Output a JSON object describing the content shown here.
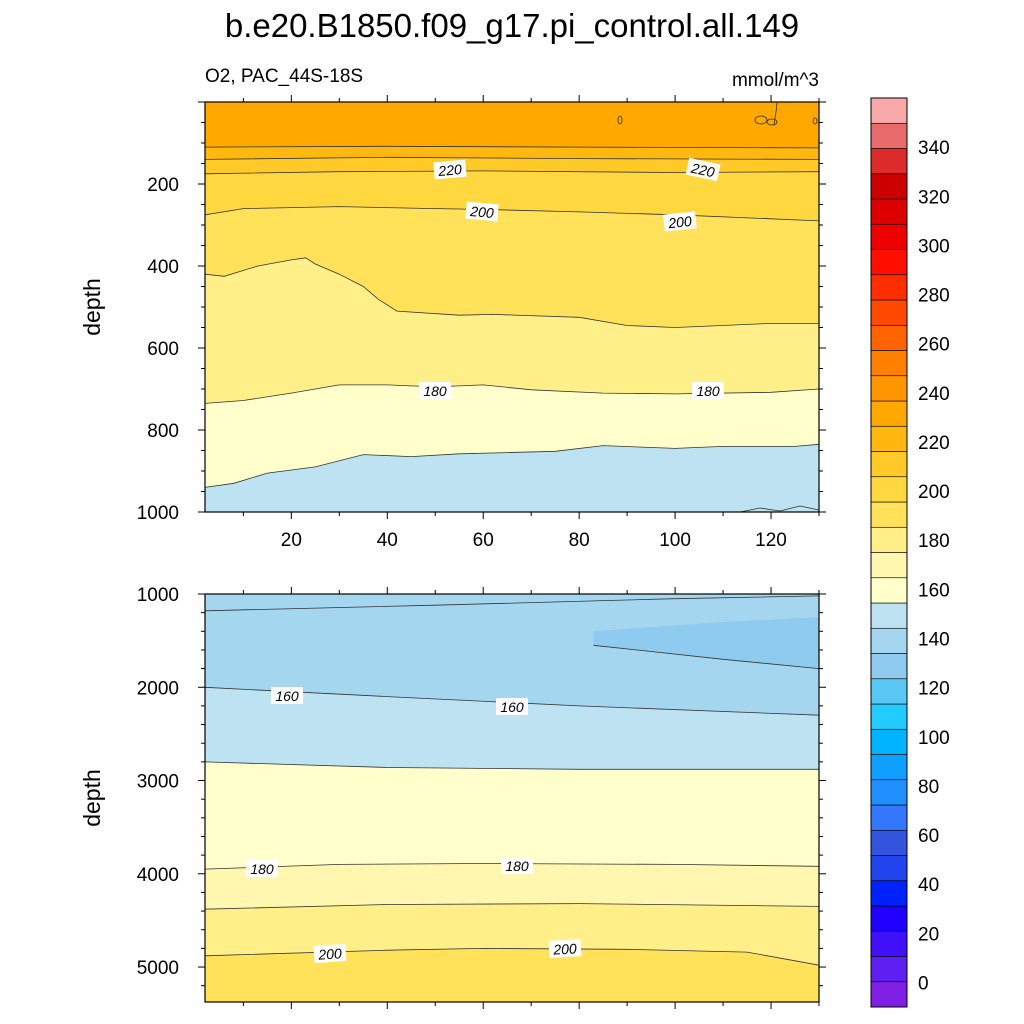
{
  "chart_data": {
    "type": "heatmap",
    "title": "b.e20.B1850.f09_g17.pi_control.all.149",
    "left_subtitle": "O2, PAC_44S-18S",
    "right_subtitle": "mmol/m^3",
    "colorbar": {
      "labels": [
        "340",
        "320",
        "300",
        "280",
        "260",
        "240",
        "220",
        "200",
        "180",
        "160",
        "140",
        "120",
        "100",
        "80",
        "60",
        "40",
        "20",
        "0"
      ],
      "level_min": -10,
      "level_max": 360,
      "level_step": 10,
      "colors": [
        "#7f1fe6",
        "#5f1ff3",
        "#3f10f9",
        "#1f00ff",
        "#0022ff",
        "#2244ee",
        "#3355dd",
        "#3377ff",
        "#1f8fff",
        "#0fa0ff",
        "#00b4ff",
        "#22ccff",
        "#5ac8f5",
        "#8ecbee",
        "#a4d6f0",
        "#bde2f2",
        "#ffffcc",
        "#fff7b0",
        "#ffef88",
        "#ffe25a",
        "#ffd840",
        "#ffc928",
        "#ffb810",
        "#ffa800",
        "#ff9600",
        "#ff7f00",
        "#ff6400",
        "#ff4a00",
        "#ff2e00",
        "#ff0f00",
        "#ee0000",
        "#dd0000",
        "#cc0000",
        "#dd2a2a",
        "#e86a6a",
        "#f8aaaa"
      ]
    },
    "panels": [
      {
        "ylabel": "depth",
        "xticks": [
          "20",
          "40",
          "60",
          "80",
          "100",
          "120"
        ],
        "xlim": [
          2,
          130
        ],
        "yticks": [
          "200",
          "400",
          "600",
          "800",
          "1000"
        ],
        "ylim": [
          1000,
          0
        ],
        "contour_labels": [
          "220",
          "220",
          "200",
          "200",
          "180",
          "180"
        ],
        "regions": [
          {
            "color": "#ffa800",
            "upper": null,
            "lower": [
              [
                2,
                110
              ],
              [
                40,
                108
              ],
              [
                80,
                110
              ],
              [
                130,
                112
              ]
            ]
          },
          {
            "color": "#ffb810",
            "upper": [
              [
                2,
                110
              ],
              [
                40,
                108
              ],
              [
                80,
                110
              ],
              [
                130,
                112
              ]
            ],
            "lower": [
              [
                2,
                140
              ],
              [
                40,
                135
              ],
              [
                80,
                138
              ],
              [
                130,
                140
              ]
            ]
          },
          {
            "color": "#ffc928",
            "upper": [
              [
                2,
                140
              ],
              [
                40,
                135
              ],
              [
                80,
                138
              ],
              [
                130,
                140
              ]
            ],
            "lower": [
              [
                2,
                175
              ],
              [
                30,
                170
              ],
              [
                60,
                168
              ],
              [
                100,
                172
              ],
              [
                130,
                170
              ]
            ]
          },
          {
            "color": "#ffd840",
            "upper": [
              [
                2,
                175
              ],
              [
                30,
                170
              ],
              [
                60,
                168
              ],
              [
                100,
                172
              ],
              [
                130,
                170
              ]
            ],
            "lower": [
              [
                2,
                275
              ],
              [
                10,
                260
              ],
              [
                30,
                255
              ],
              [
                50,
                260
              ],
              [
                60,
                262
              ],
              [
                80,
                268
              ],
              [
                100,
                275
              ],
              [
                120,
                285
              ],
              [
                130,
                290
              ]
            ]
          },
          {
            "color": "#ffe25a",
            "upper": [
              [
                2,
                275
              ],
              [
                10,
                260
              ],
              [
                30,
                255
              ],
              [
                50,
                260
              ],
              [
                60,
                262
              ],
              [
                80,
                268
              ],
              [
                100,
                275
              ],
              [
                120,
                285
              ],
              [
                130,
                290
              ]
            ],
            "lower": [
              [
                2,
                420
              ],
              [
                6,
                425
              ],
              [
                13,
                400
              ],
              [
                20,
                385
              ],
              [
                23,
                380
              ],
              [
                25,
                395
              ],
              [
                30,
                420
              ],
              [
                35,
                450
              ],
              [
                38,
                480
              ],
              [
                42,
                510
              ],
              [
                55,
                520
              ],
              [
                62,
                518
              ],
              [
                80,
                525
              ],
              [
                90,
                545
              ],
              [
                100,
                550
              ],
              [
                120,
                540
              ],
              [
                130,
                540
              ]
            ]
          },
          {
            "color": "#ffef88",
            "upper": [
              [
                2,
                420
              ],
              [
                6,
                425
              ],
              [
                13,
                400
              ],
              [
                20,
                385
              ],
              [
                23,
                380
              ],
              [
                25,
                395
              ],
              [
                30,
                420
              ],
              [
                35,
                450
              ],
              [
                38,
                480
              ],
              [
                42,
                510
              ],
              [
                55,
                520
              ],
              [
                62,
                518
              ],
              [
                80,
                525
              ],
              [
                90,
                545
              ],
              [
                100,
                550
              ],
              [
                120,
                540
              ],
              [
                130,
                540
              ]
            ],
            "lower": [
              [
                2,
                735
              ],
              [
                10,
                728
              ],
              [
                20,
                710
              ],
              [
                30,
                690
              ],
              [
                40,
                690
              ],
              [
                50,
                695
              ],
              [
                60,
                690
              ],
              [
                70,
                702
              ],
              [
                85,
                710
              ],
              [
                100,
                712
              ],
              [
                120,
                708
              ],
              [
                130,
                700
              ]
            ]
          },
          {
            "color": "#ffffcc",
            "upper": [
              [
                2,
                735
              ],
              [
                10,
                728
              ],
              [
                20,
                710
              ],
              [
                30,
                690
              ],
              [
                40,
                690
              ],
              [
                50,
                695
              ],
              [
                60,
                690
              ],
              [
                70,
                702
              ],
              [
                85,
                710
              ],
              [
                100,
                712
              ],
              [
                120,
                708
              ],
              [
                130,
                700
              ]
            ],
            "lower": [
              [
                2,
                940
              ],
              [
                8,
                930
              ],
              [
                15,
                905
              ],
              [
                25,
                890
              ],
              [
                35,
                860
              ],
              [
                45,
                865
              ],
              [
                55,
                858
              ],
              [
                65,
                855
              ],
              [
                75,
                852
              ],
              [
                85,
                838
              ],
              [
                100,
                845
              ],
              [
                110,
                840
              ],
              [
                125,
                840
              ],
              [
                130,
                835
              ]
            ]
          },
          {
            "color": "#bde2f2",
            "upper": [
              [
                2,
                940
              ],
              [
                8,
                930
              ],
              [
                15,
                905
              ],
              [
                25,
                890
              ],
              [
                35,
                860
              ],
              [
                45,
                865
              ],
              [
                55,
                858
              ],
              [
                65,
                855
              ],
              [
                75,
                852
              ],
              [
                85,
                838
              ],
              [
                100,
                845
              ],
              [
                110,
                840
              ],
              [
                125,
                840
              ],
              [
                130,
                835
              ]
            ],
            "lower": null
          }
        ]
      },
      {
        "ylabel": "depth",
        "xticks": [],
        "xlim": [
          2,
          130
        ],
        "yticks": [
          "1000",
          "2000",
          "3000",
          "4000",
          "5000"
        ],
        "ylim": [
          5375,
          1000
        ],
        "contour_labels": [
          "160",
          "160",
          "180",
          "180",
          "200",
          "200"
        ],
        "regions": [
          {
            "color": "#a4d6f0",
            "upper": null,
            "lower": [
              [
                2,
                1180
              ],
              [
                50,
                1120
              ],
              [
                100,
                1050
              ],
              [
                130,
                1020
              ]
            ]
          },
          {
            "color": "#a4d6f0",
            "upper": [
              [
                2,
                1180
              ],
              [
                50,
                1120
              ],
              [
                100,
                1050
              ],
              [
                130,
                1020
              ]
            ],
            "lower": [
              [
                2,
                2000
              ],
              [
                40,
                2100
              ],
              [
                80,
                2200
              ],
              [
                130,
                2300
              ]
            ]
          },
          {
            "color": "#8ecbee",
            "upper": [
              [
                83,
                1400
              ],
              [
                110,
                1300
              ],
              [
                130,
                1250
              ]
            ],
            "lower": [
              [
                83,
                1550
              ],
              [
                110,
                1700
              ],
              [
                130,
                1800
              ]
            ]
          },
          {
            "color": "#bde2f2",
            "upper": [
              [
                2,
                2000
              ],
              [
                40,
                2100
              ],
              [
                80,
                2200
              ],
              [
                130,
                2300
              ]
            ],
            "lower": [
              [
                2,
                2800
              ],
              [
                40,
                2860
              ],
              [
                80,
                2880
              ],
              [
                130,
                2880
              ]
            ]
          },
          {
            "color": "#ffffcc",
            "upper": [
              [
                2,
                2800
              ],
              [
                40,
                2860
              ],
              [
                80,
                2880
              ],
              [
                130,
                2880
              ]
            ],
            "lower": [
              [
                2,
                3950
              ],
              [
                30,
                3900
              ],
              [
                60,
                3890
              ],
              [
                100,
                3900
              ],
              [
                130,
                3920
              ]
            ]
          },
          {
            "color": "#fff7b0",
            "upper": [
              [
                2,
                3950
              ],
              [
                30,
                3900
              ],
              [
                60,
                3890
              ],
              [
                100,
                3900
              ],
              [
                130,
                3920
              ]
            ],
            "lower": [
              [
                2,
                4380
              ],
              [
                40,
                4330
              ],
              [
                80,
                4320
              ],
              [
                130,
                4350
              ]
            ]
          },
          {
            "color": "#ffef88",
            "upper": [
              [
                2,
                4380
              ],
              [
                40,
                4330
              ],
              [
                80,
                4320
              ],
              [
                130,
                4350
              ]
            ],
            "lower": [
              [
                2,
                4880
              ],
              [
                40,
                4820
              ],
              [
                60,
                4800
              ],
              [
                90,
                4810
              ],
              [
                115,
                4840
              ],
              [
                130,
                4980
              ]
            ]
          },
          {
            "color": "#ffe25a",
            "upper": [
              [
                2,
                4880
              ],
              [
                40,
                4820
              ],
              [
                60,
                4800
              ],
              [
                90,
                4810
              ],
              [
                115,
                4840
              ],
              [
                130,
                4980
              ]
            ],
            "lower": null
          }
        ]
      }
    ]
  }
}
